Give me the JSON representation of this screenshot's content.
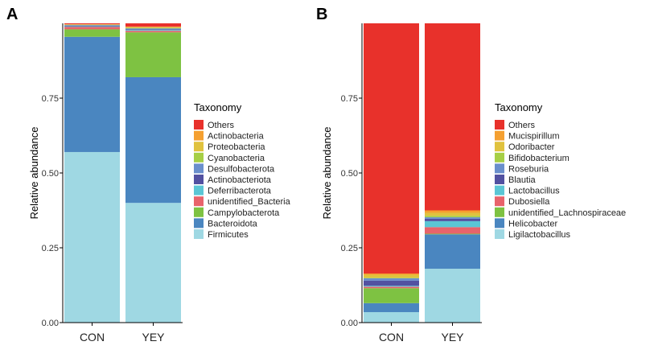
{
  "chart_data": [
    {
      "panel": "A",
      "type": "bar",
      "stacked": true,
      "categories": [
        "CON",
        "YEY"
      ],
      "ylabel": "Relative abundance",
      "xlabel": "",
      "ylim": [
        0,
        1.0
      ],
      "yticks": [
        "0.00",
        "0.25",
        "0.50",
        "0.75"
      ],
      "legend_title": "Taxonomy",
      "legend_position": "right",
      "series": [
        {
          "name": "Firmicutes",
          "color": "#9fd8e3",
          "values": [
            0.57,
            0.4
          ]
        },
        {
          "name": "Bacteroidota",
          "color": "#4a86c0",
          "values": [
            0.385,
            0.42
          ]
        },
        {
          "name": "Campylobacterota",
          "color": "#7ec242",
          "values": [
            0.025,
            0.15
          ]
        },
        {
          "name": "unidentified_Bacteria",
          "color": "#e8636b",
          "values": [
            0.008,
            0.005
          ]
        },
        {
          "name": "Deferribacterota",
          "color": "#5bc6d5",
          "values": [
            0.002,
            0.003
          ]
        },
        {
          "name": "Actinobacteriota",
          "color": "#5251a1",
          "values": [
            0.002,
            0.002
          ]
        },
        {
          "name": "Desulfobacterota",
          "color": "#6a8fcc",
          "values": [
            0.002,
            0.003
          ]
        },
        {
          "name": "Cyanobacteria",
          "color": "#a6cf45",
          "values": [
            0.001,
            0.002
          ]
        },
        {
          "name": "Proteobacteria",
          "color": "#e0c23e",
          "values": [
            0.001,
            0.002
          ]
        },
        {
          "name": "Actinobacteria",
          "color": "#f5a030",
          "values": [
            0.001,
            0.002
          ]
        },
        {
          "name": "Others",
          "color": "#e8312b",
          "values": [
            0.003,
            0.011
          ]
        }
      ]
    },
    {
      "panel": "B",
      "type": "bar",
      "stacked": true,
      "categories": [
        "CON",
        "YEY"
      ],
      "ylabel": "Relative abundance",
      "xlabel": "",
      "ylim": [
        0,
        1.0
      ],
      "yticks": [
        "0.00",
        "0.25",
        "0.50",
        "0.75"
      ],
      "legend_title": "Taxonomy",
      "legend_position": "right",
      "series": [
        {
          "name": "Ligilactobacillus",
          "color": "#9fd8e3",
          "values": [
            0.035,
            0.18
          ]
        },
        {
          "name": "Helicobacter",
          "color": "#4a86c0",
          "values": [
            0.03,
            0.115
          ]
        },
        {
          "name": "unidentified_Lachnospiraceae",
          "color": "#7ec242",
          "values": [
            0.05,
            0.002
          ]
        },
        {
          "name": "Dubosiella",
          "color": "#e8636b",
          "values": [
            0.005,
            0.022
          ]
        },
        {
          "name": "Lactobacillus",
          "color": "#5bc6d5",
          "values": [
            0.003,
            0.02
          ]
        },
        {
          "name": "Blautia",
          "color": "#5251a1",
          "values": [
            0.017,
            0.008
          ]
        },
        {
          "name": "Roseburia",
          "color": "#6a8fcc",
          "values": [
            0.008,
            0.005
          ]
        },
        {
          "name": "Bifidobacterium",
          "color": "#a6cf45",
          "values": [
            0.002,
            0.005
          ]
        },
        {
          "name": "Odoribacter",
          "color": "#e0c23e",
          "values": [
            0.01,
            0.01
          ]
        },
        {
          "name": "Mucispirillum",
          "color": "#f5a030",
          "values": [
            0.004,
            0.008
          ]
        },
        {
          "name": "Others",
          "color": "#e8312b",
          "values": [
            0.836,
            0.625
          ]
        }
      ]
    }
  ]
}
